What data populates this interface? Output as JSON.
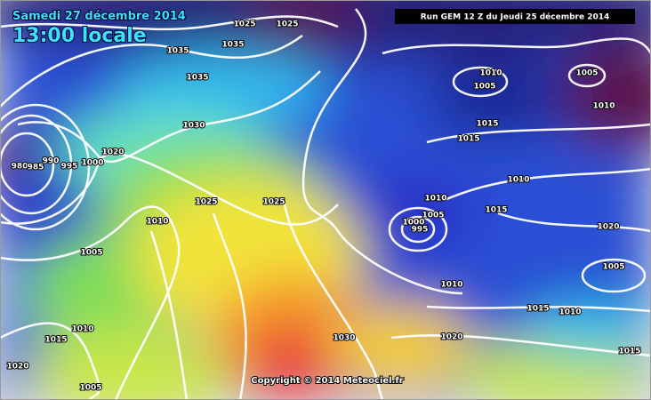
{
  "header": {
    "date": "Samedi 27 décembre 2014",
    "time": "13:00 locale",
    "run": "Run GEM 12 Z du Jeudi 25 décembre 2014"
  },
  "footer": {
    "copyright": "Copyright © 2014 Meteociel.fr"
  },
  "isobars": [
    "1025",
    "1025",
    "1035",
    "1035",
    "1035",
    "1030",
    "1020",
    "1000",
    "980",
    "985",
    "990",
    "995",
    "1010",
    "1025",
    "1025",
    "1005",
    "1010",
    "1015",
    "1020",
    "1005",
    "1010",
    "1005",
    "1005",
    "1010",
    "1015",
    "1015",
    "1010",
    "1010",
    "1005",
    "1000",
    "995",
    "1015",
    "1020",
    "1005",
    "1010",
    "1015",
    "1010",
    "1030",
    "1020",
    "1015"
  ]
}
